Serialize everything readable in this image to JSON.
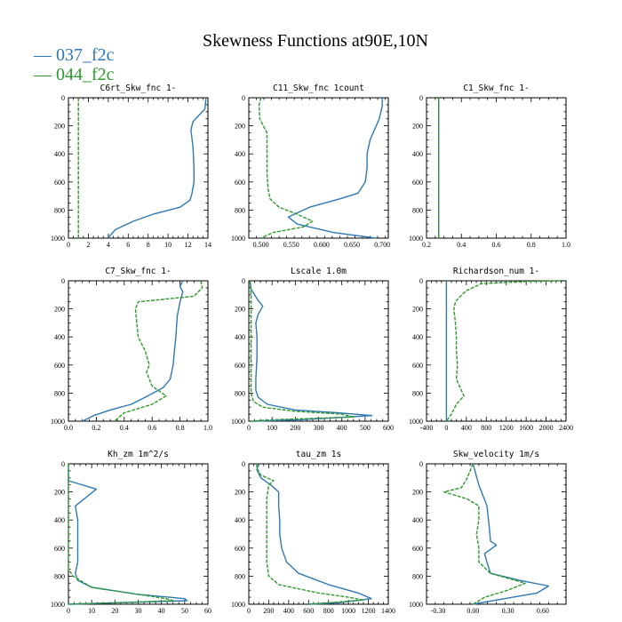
{
  "figure": {
    "title": "Skewness Functions at90E,10N",
    "legend": [
      {
        "label": "037_f2c",
        "color": "#2e78b4"
      },
      {
        "label": "044_f2c",
        "color": "#2e9a2e"
      }
    ]
  },
  "chart_data": [
    {
      "type": "line",
      "title": "C6rt_Skw_fnc  1-",
      "xlim": [
        0,
        14
      ],
      "ylim": [
        1000,
        0
      ],
      "xticks": [
        0,
        2,
        4,
        6,
        8,
        10,
        12,
        14
      ],
      "xtick_labels": [
        "0",
        "2",
        "4",
        "6",
        "8",
        "10",
        "12",
        "14"
      ],
      "yticks": [
        0,
        200,
        400,
        600,
        800,
        1000
      ],
      "series": [
        {
          "name": "037_f2c",
          "color": "#2e78b4",
          "x": [
            13.8,
            13.7,
            12.5,
            12.3,
            12.5,
            12.6,
            12.6,
            12.4,
            12.2,
            11.2,
            8.5,
            6.5,
            4.7,
            4.2,
            4.0
          ],
          "y": [
            0,
            80,
            170,
            230,
            350,
            500,
            600,
            680,
            730,
            780,
            830,
            880,
            940,
            980,
            1000
          ]
        },
        {
          "name": "044_f2c",
          "color": "#2e9a2e",
          "x": [
            1.0,
            1.0,
            1.0
          ],
          "y": [
            0,
            500,
            1000
          ]
        }
      ]
    },
    {
      "type": "line",
      "title": "C11_Skw_fnc  1count",
      "xlim": [
        0.48,
        0.71
      ],
      "ylim": [
        1000,
        0
      ],
      "xticks": [
        0.5,
        0.55,
        0.6,
        0.65,
        0.7
      ],
      "xtick_labels": [
        "0.500",
        "0.550",
        "0.600",
        "0.650",
        "0.700"
      ],
      "yticks": [
        0,
        200,
        400,
        600,
        800,
        1000
      ],
      "series": [
        {
          "name": "037_f2c",
          "color": "#2e78b4",
          "x": [
            0.7,
            0.7,
            0.695,
            0.68,
            0.675,
            0.675,
            0.672,
            0.66,
            0.63,
            0.58,
            0.545,
            0.56,
            0.62,
            0.69
          ],
          "y": [
            0,
            60,
            150,
            300,
            400,
            500,
            600,
            680,
            720,
            780,
            850,
            900,
            960,
            1000
          ]
        },
        {
          "name": "044_f2c",
          "color": "#2e9a2e",
          "x": [
            0.5,
            0.497,
            0.498,
            0.51,
            0.51,
            0.51,
            0.512,
            0.515,
            0.53,
            0.56,
            0.585,
            0.57,
            0.52,
            0.5
          ],
          "y": [
            0,
            50,
            150,
            250,
            400,
            550,
            650,
            720,
            780,
            830,
            880,
            920,
            960,
            1000
          ]
        }
      ]
    },
    {
      "type": "line",
      "title": "C1_Skw_fnc  1-",
      "xlim": [
        0.2,
        1.0
      ],
      "ylim": [
        1000,
        0
      ],
      "xticks": [
        0.2,
        0.4,
        0.6,
        0.8,
        1.0
      ],
      "xtick_labels": [
        "0.2",
        "0.4",
        "0.6",
        "0.8",
        "1.0"
      ],
      "yticks": [
        0,
        200,
        400,
        600,
        800,
        1000
      ],
      "series": [
        {
          "name": "037_f2c",
          "color": "#2e78b4",
          "x": [
            0.27,
            0.27,
            0.27
          ],
          "y": [
            0,
            500,
            1000
          ]
        },
        {
          "name": "044_f2c",
          "color": "#2e9a2e",
          "x": [
            0.27,
            0.27,
            0.27
          ],
          "y": [
            0,
            500,
            1000
          ]
        }
      ]
    },
    {
      "type": "line",
      "title": "C7_Skw_fnc  1-",
      "xlim": [
        0.0,
        1.0
      ],
      "ylim": [
        1000,
        0
      ],
      "xticks": [
        0,
        0.2,
        0.4,
        0.6,
        0.8,
        1.0
      ],
      "xtick_labels": [
        "0.0",
        "0.2",
        "0.4",
        "0.6",
        "0.8",
        "1.0"
      ],
      "yticks": [
        0,
        200,
        400,
        600,
        800,
        1000
      ],
      "series": [
        {
          "name": "037_f2c",
          "color": "#2e78b4",
          "x": [
            0.82,
            0.8,
            0.82,
            0.8,
            0.78,
            0.77,
            0.76,
            0.75,
            0.73,
            0.68,
            0.55,
            0.45,
            0.3,
            0.18,
            0.1
          ],
          "y": [
            0,
            40,
            80,
            150,
            250,
            400,
            500,
            600,
            700,
            760,
            830,
            880,
            920,
            960,
            1000
          ]
        },
        {
          "name": "044_f2c",
          "color": "#2e9a2e",
          "x": [
            0.95,
            0.96,
            0.9,
            0.5,
            0.48,
            0.5,
            0.55,
            0.58,
            0.56,
            0.6,
            0.7,
            0.6,
            0.4,
            0.33
          ],
          "y": [
            0,
            50,
            110,
            150,
            200,
            400,
            500,
            600,
            650,
            750,
            820,
            880,
            940,
            1000
          ]
        }
      ]
    },
    {
      "type": "line",
      "title": "Lscale  1.0m",
      "xlim": [
        0,
        600
      ],
      "ylim": [
        1000,
        0
      ],
      "xticks": [
        0,
        100,
        200,
        300,
        400,
        500,
        600
      ],
      "xtick_labels": [
        "0",
        "100",
        "200",
        "300",
        "400",
        "500",
        "600"
      ],
      "yticks": [
        0,
        200,
        400,
        600,
        800,
        1000
      ],
      "series": [
        {
          "name": "037_f2c",
          "color": "#2e78b4",
          "x": [
            5,
            10,
            40,
            60,
            40,
            30,
            35,
            35,
            30,
            30,
            40,
            80,
            200,
            380,
            530,
            220,
            20
          ],
          "y": [
            0,
            60,
            140,
            180,
            240,
            300,
            400,
            550,
            700,
            780,
            830,
            880,
            920,
            940,
            960,
            990,
            1000
          ]
        },
        {
          "name": "044_f2c",
          "color": "#2e9a2e",
          "x": [
            5,
            10,
            10,
            10,
            10,
            10,
            20,
            60,
            200,
            400,
            450,
            100,
            10
          ],
          "y": [
            0,
            100,
            300,
            500,
            700,
            800,
            860,
            900,
            930,
            950,
            970,
            990,
            1000
          ]
        }
      ]
    },
    {
      "type": "line",
      "title": "Richardson_num  1-",
      "xlim": [
        -400,
        2400
      ],
      "ylim": [
        1000,
        0
      ],
      "xticks": [
        -400,
        0,
        400,
        800,
        1200,
        1600,
        2000,
        2400
      ],
      "xtick_labels": [
        "-400",
        "0",
        "400",
        "800",
        "1200",
        "1600",
        "2000",
        "2400"
      ],
      "yticks": [
        0,
        200,
        400,
        600,
        800,
        1000
      ],
      "series": [
        {
          "name": "037_f2c",
          "color": "#2e78b4",
          "x": [
            0,
            0,
            0
          ],
          "y": [
            0,
            500,
            1000
          ]
        },
        {
          "name": "044_f2c",
          "color": "#2e9a2e",
          "x": [
            2300,
            1600,
            700,
            400,
            250,
            180,
            150,
            180,
            200,
            200,
            220,
            200,
            350,
            200,
            100,
            0
          ],
          "y": [
            0,
            5,
            20,
            70,
            120,
            150,
            200,
            300,
            400,
            500,
            600,
            700,
            820,
            880,
            950,
            1000
          ]
        }
      ]
    },
    {
      "type": "line",
      "title": "Kh_zm  1m^2/s",
      "xlim": [
        0,
        60
      ],
      "ylim": [
        1000,
        0
      ],
      "xticks": [
        0,
        10,
        20,
        30,
        40,
        50,
        60
      ],
      "xtick_labels": [
        "0",
        "10",
        "20",
        "30",
        "40",
        "50",
        "60"
      ],
      "yticks": [
        0,
        200,
        400,
        600,
        800,
        1000
      ],
      "series": [
        {
          "name": "037_f2c",
          "color": "#2e78b4",
          "x": [
            0,
            0,
            12,
            3,
            4,
            4,
            4,
            3,
            4,
            10,
            30,
            50,
            51,
            20,
            0
          ],
          "y": [
            0,
            120,
            180,
            300,
            400,
            550,
            700,
            780,
            830,
            880,
            930,
            960,
            975,
            990,
            1000
          ]
        },
        {
          "name": "044_f2c",
          "color": "#2e9a2e",
          "x": [
            0,
            0,
            0,
            0,
            0,
            2,
            10,
            30,
            42,
            45,
            20,
            0
          ],
          "y": [
            0,
            200,
            400,
            600,
            750,
            800,
            880,
            930,
            960,
            975,
            990,
            1000
          ]
        }
      ]
    },
    {
      "type": "line",
      "title": "tau_zm  1s",
      "xlim": [
        0,
        1400
      ],
      "ylim": [
        1000,
        0
      ],
      "xticks": [
        0,
        200,
        400,
        600,
        800,
        1000,
        1200,
        1400
      ],
      "xtick_labels": [
        "0",
        "200",
        "400",
        "600",
        "800",
        "1000",
        "1200",
        "1400"
      ],
      "yticks": [
        0,
        200,
        400,
        600,
        800,
        1000
      ],
      "series": [
        {
          "name": "037_f2c",
          "color": "#2e78b4",
          "x": [
            100,
            80,
            120,
            220,
            300,
            300,
            310,
            310,
            330,
            380,
            500,
            800,
            1100,
            1230,
            900,
            600
          ],
          "y": [
            0,
            40,
            100,
            150,
            200,
            300,
            400,
            500,
            600,
            700,
            780,
            860,
            920,
            960,
            990,
            1000
          ]
        },
        {
          "name": "044_f2c",
          "color": "#2e9a2e",
          "x": [
            80,
            80,
            120,
            250,
            200,
            180,
            180,
            180,
            180,
            200,
            300,
            700,
            1000,
            1150,
            800,
            600
          ],
          "y": [
            0,
            30,
            80,
            120,
            150,
            250,
            400,
            550,
            700,
            800,
            860,
            920,
            950,
            970,
            990,
            1000
          ]
        }
      ]
    },
    {
      "type": "line",
      "title": "Skw_velocity  1m/s",
      "xlim": [
        -0.4,
        0.8
      ],
      "ylim": [
        1000,
        0
      ],
      "xticks": [
        -0.3,
        0.0,
        0.3,
        0.6
      ],
      "xtick_labels": [
        "-0.30",
        "0.00",
        "0.30",
        "0.60"
      ],
      "yticks": [
        0,
        200,
        400,
        600,
        800,
        1000
      ],
      "series": [
        {
          "name": "037_f2c",
          "color": "#2e78b4",
          "x": [
            0.0,
            0.05,
            0.12,
            0.14,
            0.15,
            0.2,
            0.1,
            0.12,
            0.15,
            0.4,
            0.65,
            0.55,
            0.2,
            0.0
          ],
          "y": [
            0,
            150,
            300,
            450,
            550,
            580,
            640,
            700,
            780,
            830,
            870,
            920,
            970,
            1000
          ]
        },
        {
          "name": "044_f2c",
          "color": "#2e9a2e",
          "x": [
            0.0,
            -0.05,
            -0.1,
            -0.25,
            -0.05,
            0.05,
            0.05,
            0.03,
            0.05,
            0.05,
            0.15,
            0.45,
            0.3,
            0.1,
            0.0
          ],
          "y": [
            0,
            100,
            170,
            200,
            250,
            300,
            400,
            500,
            600,
            700,
            780,
            850,
            900,
            950,
            1000
          ]
        }
      ]
    }
  ]
}
